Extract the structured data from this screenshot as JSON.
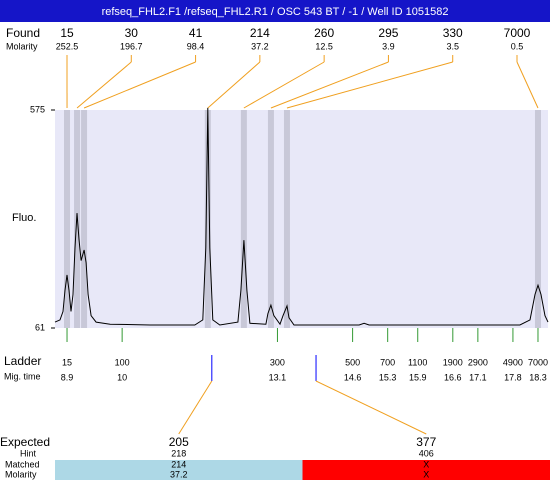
{
  "title": "refseq_FHL2.F1 /refseq_FHL2.R1 / OSC 543 BT / -1 / Well ID 1051582",
  "chart_data": {
    "type": "line",
    "y_label": "Fluo.",
    "ylim": [
      61,
      575
    ],
    "yticks": [
      61,
      575
    ],
    "xlim": [
      8.66,
      18.5
    ],
    "color": "#000000",
    "band_color": "#c8c8d8",
    "background": "#e8e8f8",
    "x": [
      8.66,
      8.76,
      8.82,
      8.86,
      8.9,
      8.94,
      8.98,
      9.02,
      9.06,
      9.1,
      9.14,
      9.18,
      9.24,
      9.28,
      9.32,
      9.38,
      9.48,
      9.76,
      10.56,
      11.45,
      11.61,
      11.67,
      11.71,
      11.75,
      11.81,
      11.95,
      12.31,
      12.37,
      12.43,
      12.49,
      12.55,
      12.87,
      12.91,
      12.97,
      13.03,
      13.15,
      13.21,
      13.29,
      13.33,
      13.43,
      14.73,
      14.83,
      14.93,
      17.94,
      18.14,
      18.24,
      18.3,
      18.36,
      18.44,
      18.5
    ],
    "values": [
      75,
      80,
      100,
      150,
      186,
      150,
      100,
      140,
      250,
      332,
      270,
      220,
      245,
      215,
      140,
      90,
      75,
      70,
      68,
      68,
      80,
      250,
      580,
      250,
      80,
      68,
      75,
      150,
      268,
      150,
      72,
      70,
      95,
      115,
      90,
      70,
      90,
      113,
      85,
      68,
      68,
      72,
      68,
      68,
      80,
      140,
      162,
      140,
      90,
      75
    ],
    "found": {
      "label": "Found",
      "sublabel": "Molarity",
      "sizes": [
        15,
        30,
        41,
        214,
        260,
        295,
        330,
        7000
      ],
      "molarities": [
        252.5,
        196.7,
        98.4,
        37.2,
        12.5,
        3.9,
        3.5,
        0.5
      ],
      "times": [
        8.9,
        9.1,
        9.24,
        11.71,
        12.43,
        12.97,
        13.29,
        18.3
      ]
    },
    "ladder": {
      "label": "Ladder",
      "sublabel": "Mig. time",
      "sizes": [
        15,
        100,
        300,
        500,
        700,
        1100,
        1900,
        2900,
        4900,
        7000
      ],
      "times": [
        8.9,
        10,
        13.1,
        14.6,
        15.3,
        15.9,
        16.6,
        17.1,
        17.8,
        18.3
      ]
    },
    "expected": {
      "label": "Expected",
      "row_labels": [
        "Hint",
        "Matched",
        "Molarity"
      ],
      "sizes": [
        205,
        377
      ],
      "times": [
        11.79,
        13.87
      ],
      "hint": [
        218,
        406
      ],
      "matched": [
        214,
        "X"
      ],
      "molarity": [
        37.2,
        "X"
      ],
      "colors": [
        "#add8e6",
        "#ff0000"
      ]
    }
  }
}
